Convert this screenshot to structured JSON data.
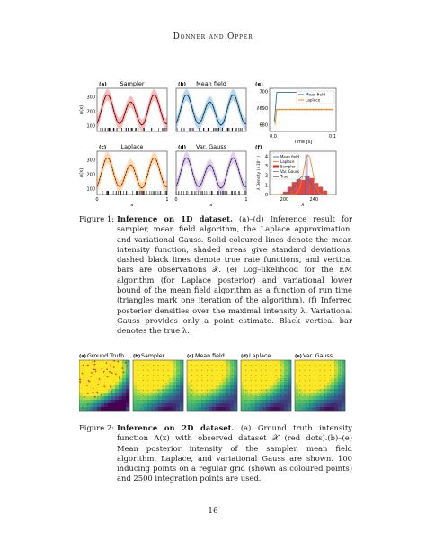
{
  "header": {
    "running_head": "Donner and Opper"
  },
  "figure1": {
    "panels": [
      {
        "letter": "(a)",
        "title": "Sampler",
        "color": "#d62728"
      },
      {
        "letter": "(b)",
        "title": "Mean field",
        "color": "#1f77b4"
      },
      {
        "letter": "(c)",
        "title": "Laplace",
        "color": "#ff7f0e"
      },
      {
        "letter": "(d)",
        "title": "Var. Gauss",
        "color": "#9467bd"
      },
      {
        "letter": "(e)",
        "title": ""
      },
      {
        "letter": "(f)",
        "title": ""
      }
    ],
    "ylabel_left": "Λ(x)",
    "yticks_left": [
      "300",
      "200",
      "100"
    ],
    "xlabel_bottom": "x",
    "xticks_bottom": [
      "0",
      "1"
    ],
    "panel_e": {
      "ylabel": "ℓ",
      "yticks": [
        "700",
        "690",
        "680"
      ],
      "xticks": [
        "0.0",
        "0.1"
      ],
      "xlabel": "Time [s]",
      "legend": [
        "Mean field",
        "Laplace"
      ]
    },
    "panel_f": {
      "ylabel": "λ Density (×10⁻²)",
      "yticks": [
        "4",
        "3",
        "2",
        "1",
        "0"
      ],
      "xticks": [
        "200",
        "240"
      ],
      "xlabel": "λ",
      "legend": [
        "Mean field",
        "Laplace",
        "Sampler",
        "Var. Gauss",
        "True"
      ]
    },
    "caption_label": "Figure 1:",
    "caption_title": "Inference on 1D dataset.",
    "caption_text": "(a)–(d) Inference result for sampler, mean field algorithm, the Laplace approximation, and variational Gauss. Solid coloured lines denote the mean intensity function, shaded areas give standard deviations, dashed black lines denote true rate functions, and vertical bars are observations 𝒳. (e) Log–likelihood for the EM algorithm (for Laplace posterior) and variational lower bound of the mean field algorithm as a function of run time (triangles mark one iteration of the algorithm). (f) Inferred posterior densities over the maximal intensity λ. Variational Gauss provides only a point estimate. Black vertical bar denotes the true λ."
  },
  "figure2": {
    "panels": [
      {
        "letter": "(a)",
        "title": "Ground Truth"
      },
      {
        "letter": "(b)",
        "title": "Sampler"
      },
      {
        "letter": "(c)",
        "title": "Mean field"
      },
      {
        "letter": "(d)",
        "title": "Laplace"
      },
      {
        "letter": "(e)",
        "title": "Var. Gauss"
      }
    ],
    "caption_label": "Figure 2:",
    "caption_title": "Inference on 2D dataset.",
    "caption_text": "(a) Ground truth intensity function Λ(x) with observed dataset 𝒳 (red dots).(b)–(e) Mean posterior intensity of the sampler, mean field algorithm, Laplace, and variational Gauss are shown. 100 inducing points on a regular grid (shown as coloured points) and 2500 integration points are used."
  },
  "footer": {
    "page_number": "16"
  }
}
